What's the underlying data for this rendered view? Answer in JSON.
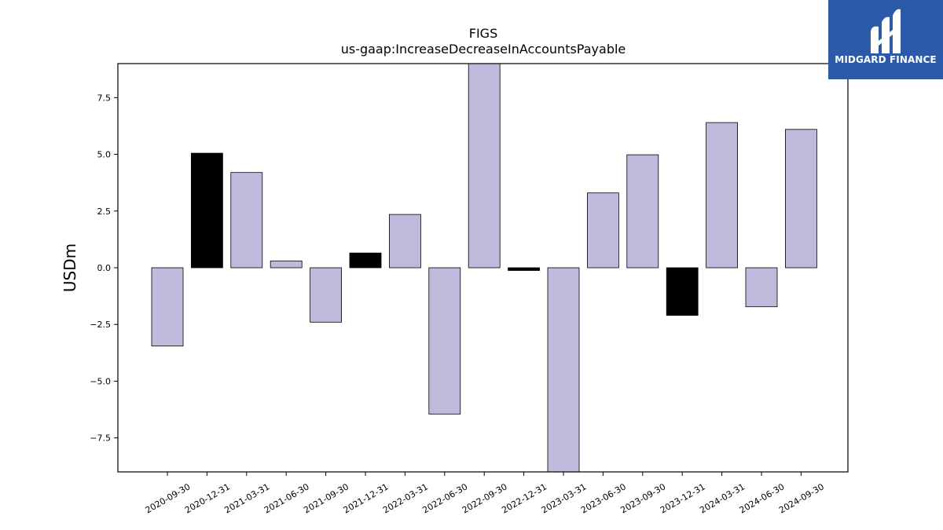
{
  "chart_data": {
    "type": "bar",
    "title": "FIGS",
    "subtitle": "us-gaap:IncreaseDecreaseInAccountsPayable",
    "ylabel": "USDm",
    "xlabel": "",
    "ylim": [
      -9.0,
      9.0
    ],
    "yticks": [
      -7.5,
      -5.0,
      -2.5,
      0.0,
      2.5,
      5.0,
      7.5
    ],
    "ytick_labels": [
      "−7.5",
      "−5.0",
      "−2.5",
      "0.0",
      "2.5",
      "5.0",
      "7.5"
    ],
    "grid": false,
    "categories": [
      "2020-09-30",
      "2020-12-31",
      "2021-03-31",
      "2021-06-30",
      "2021-09-30",
      "2021-12-31",
      "2022-03-31",
      "2022-06-30",
      "2022-09-30",
      "2022-12-31",
      "2023-03-31",
      "2023-06-30",
      "2023-09-30",
      "2023-12-31",
      "2024-03-31",
      "2024-06-30",
      "2024-09-30"
    ],
    "values": [
      -3.45,
      5.05,
      4.2,
      0.3,
      -2.4,
      0.65,
      2.35,
      -6.45,
      9.0,
      -0.12,
      -9.0,
      3.3,
      4.98,
      -2.1,
      6.4,
      -1.72,
      6.1
    ],
    "bar_kind": [
      "q",
      "fy",
      "q",
      "q",
      "q",
      "fy",
      "q",
      "q",
      "q",
      "fy",
      "q",
      "q",
      "q",
      "fy",
      "q",
      "q",
      "q"
    ],
    "colors": {
      "q": "#bebadb",
      "fy": "#000000",
      "edge": "#000000"
    }
  },
  "logo": {
    "text": "MIDGARD FINANCE",
    "background": "#2d5aa8"
  }
}
